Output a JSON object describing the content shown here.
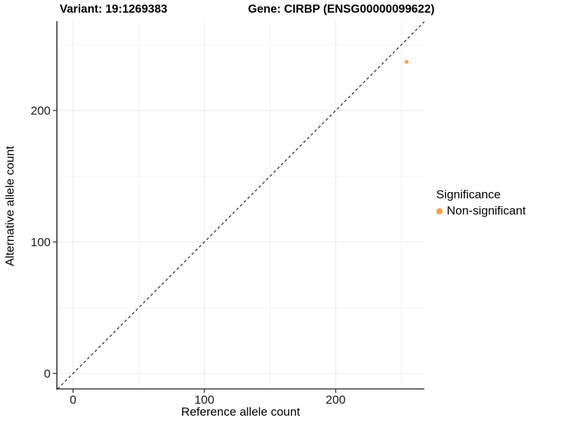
{
  "chart_data": {
    "type": "scatter",
    "titles": {
      "variant": "Variant: 19:1269383",
      "gene": "Gene: CIRBP (ENSG00000099622)"
    },
    "xlabel": "Reference allele count",
    "ylabel": "Alternative allele count",
    "xlim": [
      -12.3,
      267.5
    ],
    "ylim": [
      -11.8,
      268.0
    ],
    "x_ticks": [
      0,
      100,
      200
    ],
    "y_ticks": [
      0,
      100,
      200
    ],
    "x_minor_ticks": [
      50,
      150,
      250
    ],
    "y_minor_ticks": [
      50,
      150,
      250
    ],
    "grid": "major+minor on white background",
    "identity_line": {
      "slope": 1,
      "intercept": 0,
      "style": "dashed",
      "color": "#1a1a1a"
    },
    "points": [
      {
        "x": 254,
        "y": 237,
        "significance": "Non-significant",
        "color": "#F9A242",
        "radius_px": 2.8
      }
    ],
    "legend": {
      "title": "Significance",
      "position": "right",
      "items": [
        {
          "label": "Non-significant",
          "color": "#F9A242"
        }
      ]
    },
    "colors": {
      "background": "#FFFFFF",
      "grid_major": "#E8E8E8",
      "grid_minor": "#F4F4F4",
      "axis_line": "#333333",
      "tick_text": "#1A1A1A",
      "point_orange": "#F9A242"
    }
  }
}
